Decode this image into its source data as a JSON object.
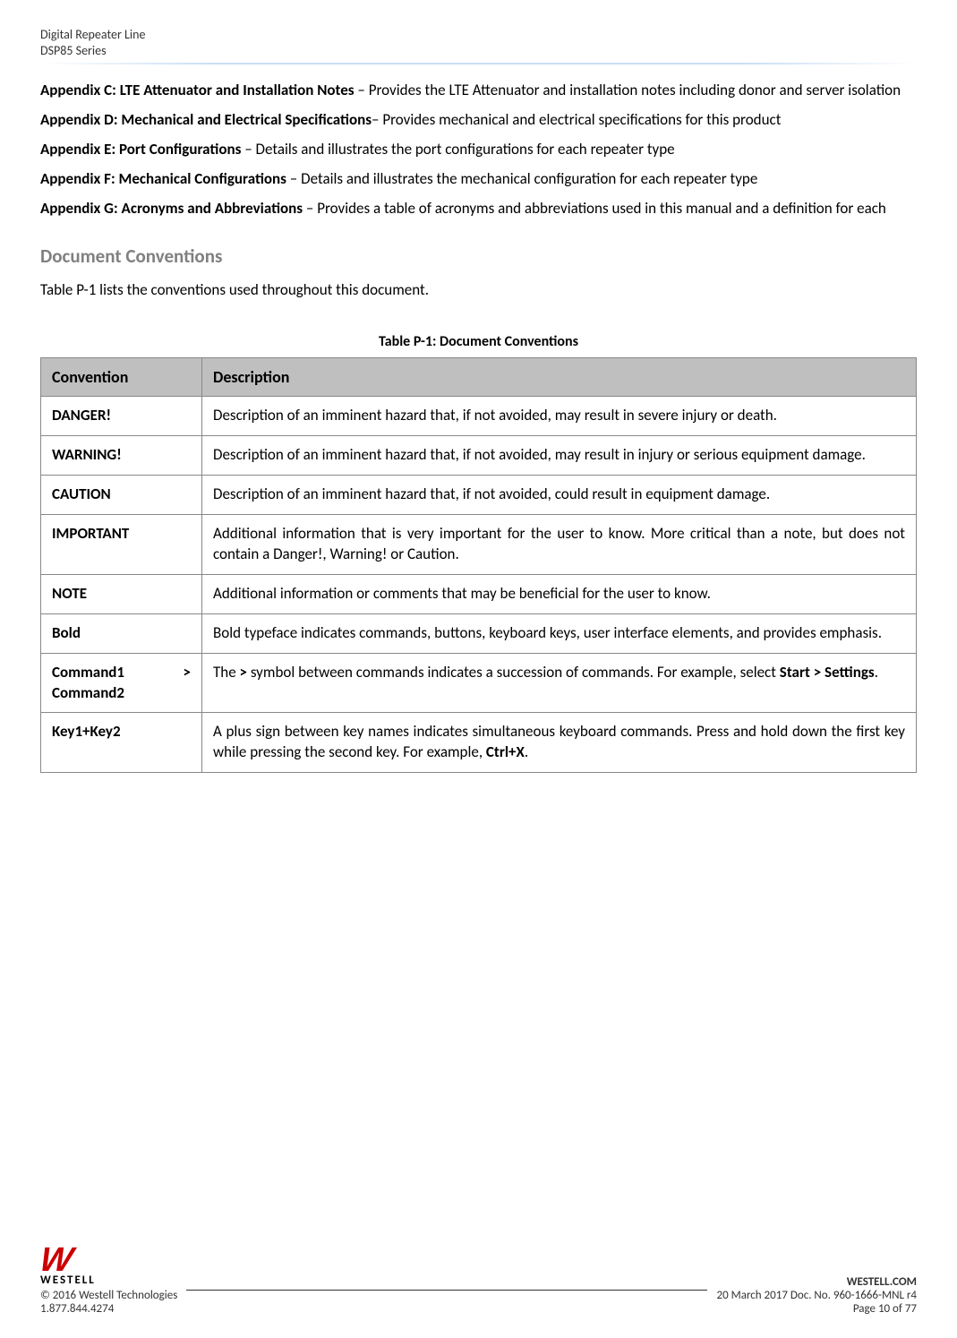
{
  "header": {
    "line1": "Digital Repeater Line",
    "line2": "DSP85 Series"
  },
  "appendices": [
    {
      "title": "Appendix C: LTE Attenuator and Installation Notes",
      "sep": " – ",
      "desc": "Provides the LTE Attenuator and installation notes including donor and server isolation"
    },
    {
      "title": "Appendix D: Mechanical and Electrical Specifications",
      "sep": "– ",
      "desc": "Provides mechanical and electrical specifications for this product"
    },
    {
      "title": "Appendix E: Port Configurations",
      "sep": " – ",
      "desc": "Details and illustrates the port configurations for each repeater type"
    },
    {
      "title": "Appendix F: Mechanical Configurations",
      "sep": " – ",
      "desc": "Details and illustrates the mechanical configuration for each repeater type"
    },
    {
      "title": "Appendix G: Acronyms and Abbreviations",
      "sep": " – ",
      "desc": "Provides a table of acronyms and abbreviations used in this manual and a definition for each"
    }
  ],
  "section": {
    "heading": "Document Conventions",
    "intro": "Table P-1 lists the conventions used throughout this document."
  },
  "table": {
    "caption": "Table P-1: Document Conventions",
    "columns": [
      "Convention",
      "Description"
    ],
    "rows": [
      {
        "c": "DANGER!",
        "d": "Description of an imminent hazard that, if not avoided, may result in severe injury or death."
      },
      {
        "c": "WARNING!",
        "d": "Description of an imminent hazard that, if not avoided, may result in injury or serious equipment damage."
      },
      {
        "c": "CAUTION",
        "d": "Description of an imminent hazard that, if not avoided, could result in equipment damage."
      },
      {
        "c": "IMPORTANT",
        "d": "Additional information that is very important for the user to know. More critical than a note, but does not contain a Danger!, Warning! or Caution."
      },
      {
        "c": "NOTE",
        "d": "Additional information or comments that may be beneficial for the user to know."
      },
      {
        "c": "Bold",
        "d": "Bold typeface indicates commands, buttons, keyboard keys, user interface elements, and provides emphasis."
      }
    ],
    "cmd_row": {
      "c1": "Command1",
      "arrow": ">",
      "c2": "Command2",
      "d_pre": "The ",
      "d_b1": ">",
      "d_mid": " symbol between commands indicates a succession of commands.  For example, select ",
      "d_b2": "Start > Settings",
      "d_post": "."
    },
    "key_row": {
      "c": "Key1+Key2",
      "d_pre": "A plus sign between key names indicates simultaneous keyboard commands.  Press and hold down the first key while pressing the second key.  For example, ",
      "d_b": "Ctrl+X",
      "d_post": "."
    }
  },
  "footer": {
    "logo_text": "WESTELL",
    "copyright": "© 2016 Westell Technologies",
    "phone": "1.877.844.4274",
    "site": "WESTELL.COM",
    "docinfo": "20 March 2017 Doc. No. 960-1666-MNL r4",
    "page": "Page 10 of 77"
  }
}
